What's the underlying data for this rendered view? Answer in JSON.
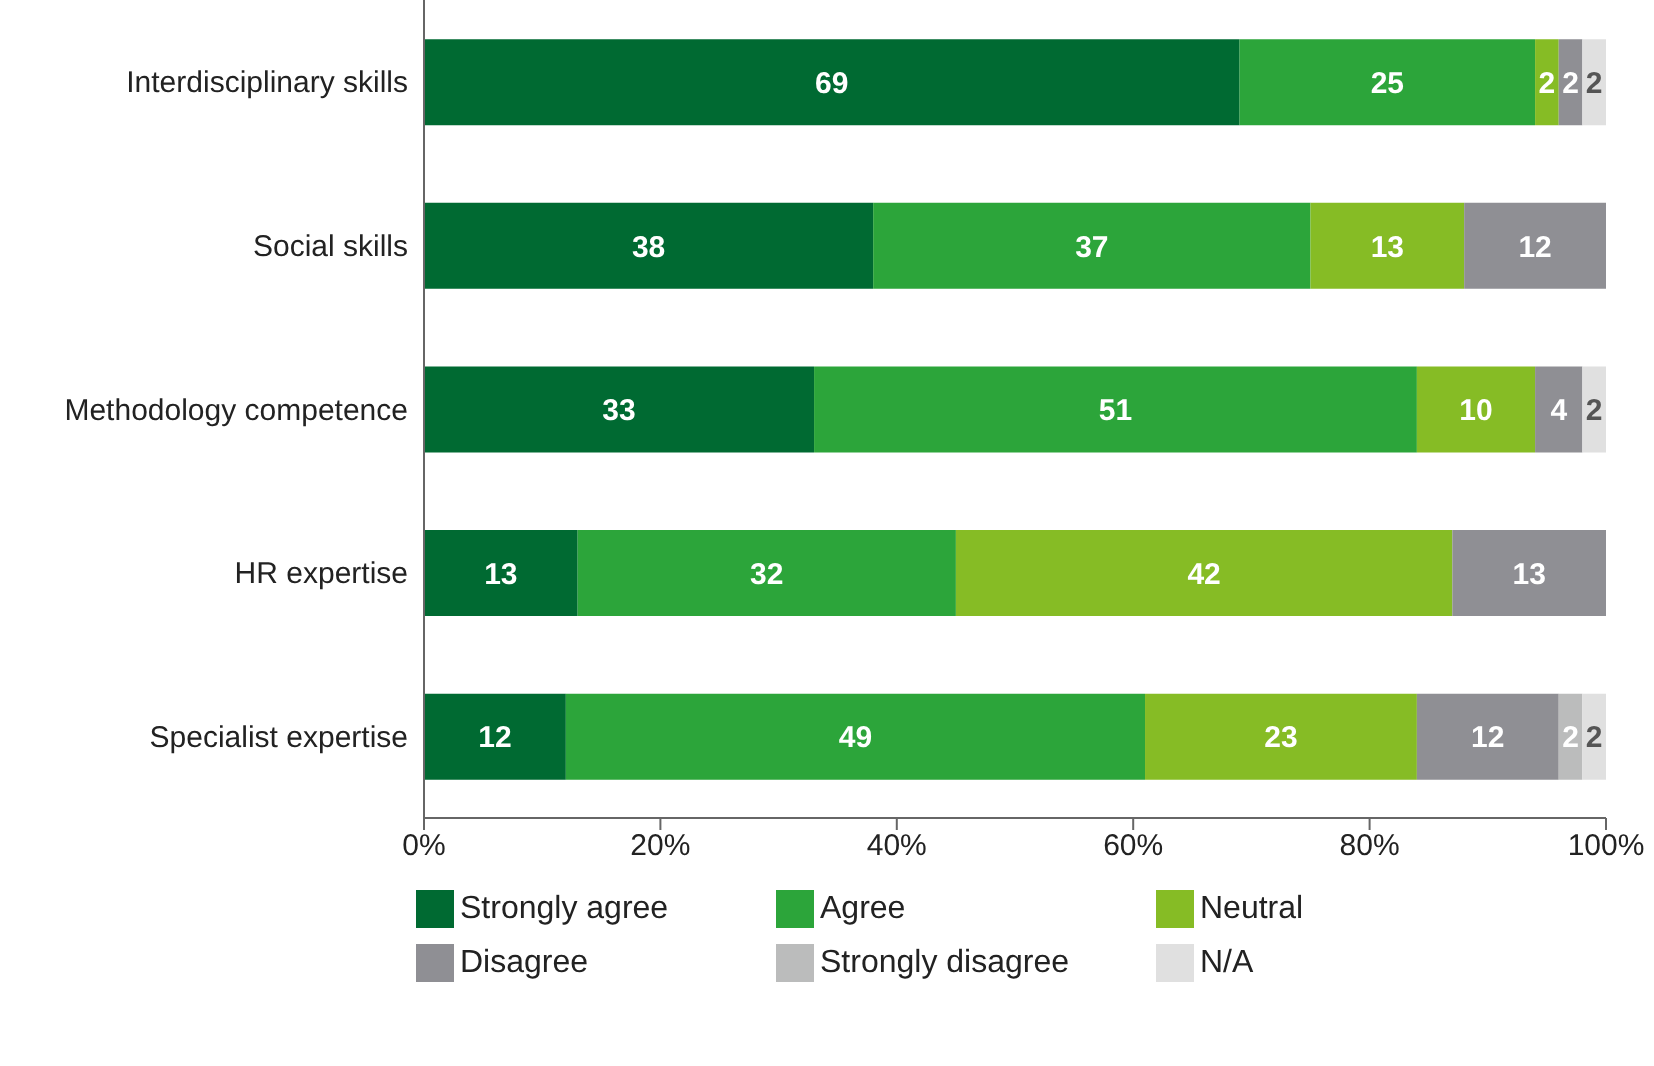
{
  "chart_data": {
    "type": "bar",
    "orientation": "horizontal",
    "stacked": true,
    "data_labels": true,
    "legend": "bottom",
    "grid": false,
    "categories": [
      "Interdisciplinary skills",
      "Social skills",
      "Methodology competence",
      "HR expertise",
      "Specialist expertise"
    ],
    "xlim": [
      0,
      100
    ],
    "xticks": [
      {
        "value": 0,
        "label": "0%"
      },
      {
        "value": 20,
        "label": "20%"
      },
      {
        "value": 40,
        "label": "40%"
      },
      {
        "value": 60,
        "label": "60%"
      },
      {
        "value": 80,
        "label": "80%"
      },
      {
        "value": 100,
        "label": "100%"
      }
    ],
    "series": [
      {
        "name": "Strongly agree",
        "color": "#006a32",
        "values": [
          69,
          38,
          33,
          13,
          12
        ]
      },
      {
        "name": "Agree",
        "color": "#2ca53a",
        "values": [
          25,
          37,
          51,
          32,
          49
        ]
      },
      {
        "name": "Neutral",
        "color": "#86bc25",
        "values": [
          2,
          13,
          10,
          42,
          23
        ]
      },
      {
        "name": "Disagree",
        "color": "#8f8f94",
        "values": [
          2,
          12,
          4,
          13,
          12
        ]
      },
      {
        "name": "Strongly disagree",
        "color": "#bbbcbc",
        "values": [
          null,
          null,
          null,
          null,
          2
        ]
      },
      {
        "name": "N/A",
        "color": "#e0e0e0",
        "values": [
          2,
          null,
          2,
          null,
          2
        ]
      }
    ]
  }
}
